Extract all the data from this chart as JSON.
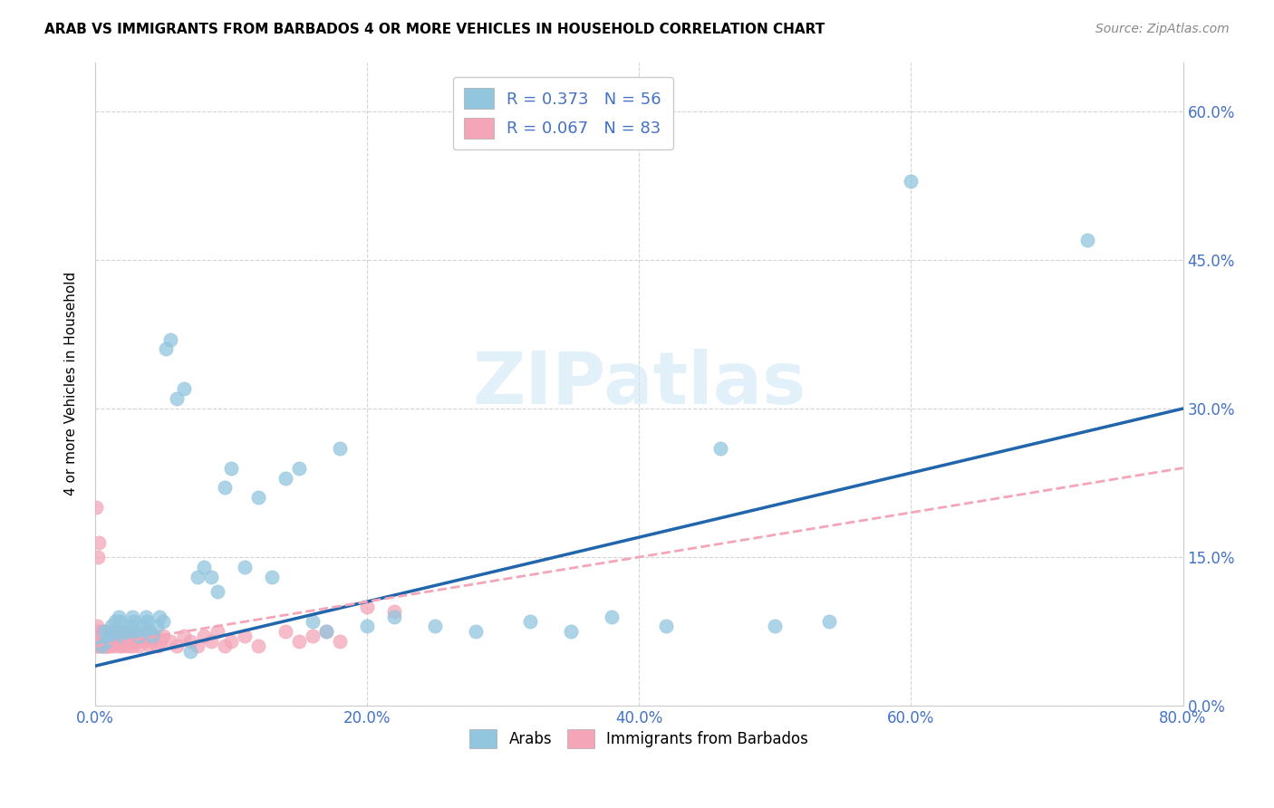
{
  "title": "ARAB VS IMMIGRANTS FROM BARBADOS 4 OR MORE VEHICLES IN HOUSEHOLD CORRELATION CHART",
  "source": "Source: ZipAtlas.com",
  "ylabel_label": "4 or more Vehicles in Household",
  "xlim": [
    0.0,
    0.8
  ],
  "ylim": [
    0.0,
    0.65
  ],
  "xticks": [
    0.0,
    0.2,
    0.4,
    0.6,
    0.8
  ],
  "yticks": [
    0.0,
    0.15,
    0.3,
    0.45,
    0.6
  ],
  "xtick_labels": [
    "0.0%",
    "20.0%",
    "40.0%",
    "60.0%",
    "80.0%"
  ],
  "ytick_labels": [
    "0.0%",
    "15.0%",
    "30.0%",
    "45.0%",
    "60.0%"
  ],
  "arab_color": "#92c5de",
  "barbados_color": "#f4a6b8",
  "arab_line_color": "#2166ac",
  "barbados_line_color": "#f4a6b8",
  "arab_R": 0.373,
  "arab_N": 56,
  "barbados_R": 0.067,
  "barbados_N": 83,
  "background_color": "#ffffff",
  "grid_color": "#d0d0d0",
  "watermark": "ZIPatlas",
  "arab_scatter_x": [
    0.005,
    0.007,
    0.008,
    0.01,
    0.012,
    0.015,
    0.015,
    0.017,
    0.018,
    0.02,
    0.022,
    0.025,
    0.027,
    0.028,
    0.03,
    0.032,
    0.035,
    0.037,
    0.038,
    0.04,
    0.042,
    0.045,
    0.047,
    0.05,
    0.052,
    0.055,
    0.06,
    0.065,
    0.07,
    0.075,
    0.08,
    0.085,
    0.09,
    0.095,
    0.1,
    0.11,
    0.12,
    0.13,
    0.14,
    0.15,
    0.16,
    0.17,
    0.18,
    0.2,
    0.22,
    0.25,
    0.28,
    0.32,
    0.35,
    0.38,
    0.42,
    0.46,
    0.5,
    0.54,
    0.6,
    0.73
  ],
  "arab_scatter_y": [
    0.06,
    0.075,
    0.065,
    0.07,
    0.08,
    0.085,
    0.075,
    0.09,
    0.085,
    0.07,
    0.075,
    0.08,
    0.09,
    0.085,
    0.075,
    0.07,
    0.08,
    0.09,
    0.085,
    0.075,
    0.07,
    0.08,
    0.09,
    0.085,
    0.36,
    0.37,
    0.31,
    0.32,
    0.055,
    0.13,
    0.14,
    0.13,
    0.115,
    0.22,
    0.24,
    0.14,
    0.21,
    0.13,
    0.23,
    0.24,
    0.085,
    0.075,
    0.26,
    0.08,
    0.09,
    0.08,
    0.075,
    0.085,
    0.075,
    0.09,
    0.08,
    0.26,
    0.08,
    0.085,
    0.53,
    0.47
  ],
  "barbados_scatter_x": [
    0.0005,
    0.0008,
    0.001,
    0.0012,
    0.0015,
    0.0018,
    0.002,
    0.0022,
    0.0025,
    0.003,
    0.0032,
    0.0035,
    0.004,
    0.0042,
    0.0045,
    0.005,
    0.0052,
    0.0055,
    0.006,
    0.0062,
    0.0065,
    0.007,
    0.0072,
    0.0075,
    0.008,
    0.0082,
    0.0085,
    0.009,
    0.0092,
    0.0095,
    0.01,
    0.011,
    0.012,
    0.013,
    0.014,
    0.015,
    0.016,
    0.017,
    0.018,
    0.019,
    0.02,
    0.021,
    0.022,
    0.023,
    0.024,
    0.025,
    0.026,
    0.027,
    0.028,
    0.029,
    0.03,
    0.032,
    0.034,
    0.036,
    0.038,
    0.04,
    0.042,
    0.044,
    0.046,
    0.048,
    0.05,
    0.055,
    0.06,
    0.065,
    0.07,
    0.075,
    0.08,
    0.085,
    0.09,
    0.095,
    0.1,
    0.11,
    0.12,
    0.14,
    0.15,
    0.16,
    0.17,
    0.18,
    0.2,
    0.22,
    0.001,
    0.002,
    0.003
  ],
  "barbados_scatter_y": [
    0.065,
    0.06,
    0.075,
    0.065,
    0.08,
    0.06,
    0.07,
    0.065,
    0.075,
    0.065,
    0.06,
    0.07,
    0.065,
    0.075,
    0.06,
    0.065,
    0.07,
    0.06,
    0.065,
    0.075,
    0.06,
    0.065,
    0.07,
    0.06,
    0.065,
    0.075,
    0.06,
    0.065,
    0.07,
    0.06,
    0.065,
    0.06,
    0.07,
    0.075,
    0.06,
    0.065,
    0.07,
    0.075,
    0.06,
    0.065,
    0.06,
    0.075,
    0.065,
    0.07,
    0.06,
    0.065,
    0.075,
    0.06,
    0.065,
    0.07,
    0.065,
    0.06,
    0.07,
    0.065,
    0.075,
    0.06,
    0.065,
    0.07,
    0.06,
    0.065,
    0.07,
    0.065,
    0.06,
    0.07,
    0.065,
    0.06,
    0.07,
    0.065,
    0.075,
    0.06,
    0.065,
    0.07,
    0.06,
    0.075,
    0.065,
    0.07,
    0.075,
    0.065,
    0.1,
    0.095,
    0.2,
    0.15,
    0.165
  ],
  "arab_line_x": [
    0.0,
    0.8
  ],
  "arab_line_y": [
    0.04,
    0.3
  ],
  "barbados_line_x": [
    0.0,
    0.8
  ],
  "barbados_line_y": [
    0.06,
    0.24
  ]
}
